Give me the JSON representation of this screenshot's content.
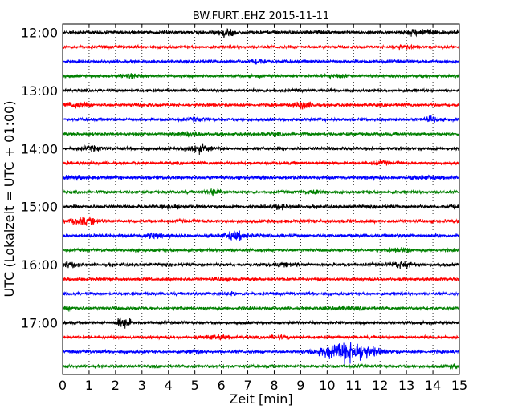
{
  "chart_data": {
    "type": "line",
    "title": "BW.FURT..EHZ 2015-11-11",
    "xlabel": "Zeit  [min]",
    "ylabel": "UTC (Lokalzeit = UTC + 01:00)",
    "xlim": [
      0,
      15
    ],
    "x_ticks": [
      "0",
      "1",
      "2",
      "3",
      "4",
      "5",
      "6",
      "7",
      "8",
      "9",
      "10",
      "11",
      "12",
      "13",
      "14",
      "15"
    ],
    "y_ticks": [
      "12:00",
      "13:00",
      "14:00",
      "15:00",
      "16:00",
      "17:00"
    ],
    "grid": true,
    "trace_interval_min": 15,
    "trace_colors": [
      "#000000",
      "#ff0000",
      "#0000ff",
      "#008000"
    ],
    "traces": [
      {
        "start": "12:00",
        "color": "#000000",
        "amplitude": 1.0,
        "bursts": [
          {
            "t": 6.2,
            "a": 1.9,
            "w": 0.35
          },
          {
            "t": 13.5,
            "a": 1.7,
            "w": 0.5
          }
        ]
      },
      {
        "start": "12:15",
        "color": "#ff0000",
        "amplitude": 0.9,
        "bursts": [
          {
            "t": 12.8,
            "a": 1.4,
            "w": 0.4
          }
        ]
      },
      {
        "start": "12:30",
        "color": "#0000ff",
        "amplitude": 0.9,
        "bursts": [
          {
            "t": 7.4,
            "a": 1.6,
            "w": 0.3
          }
        ]
      },
      {
        "start": "12:45",
        "color": "#008000",
        "amplitude": 0.9,
        "bursts": [
          {
            "t": 2.6,
            "a": 1.4,
            "w": 0.4
          },
          {
            "t": 10.3,
            "a": 1.3,
            "w": 0.5
          }
        ]
      },
      {
        "start": "13:00",
        "color": "#000000",
        "amplitude": 0.9,
        "bursts": []
      },
      {
        "start": "13:15",
        "color": "#ff0000",
        "amplitude": 1.0,
        "bursts": [
          {
            "t": 0.5,
            "a": 1.6,
            "w": 0.4
          },
          {
            "t": 9.1,
            "a": 1.7,
            "w": 0.35
          }
        ]
      },
      {
        "start": "13:30",
        "color": "#0000ff",
        "amplitude": 0.9,
        "bursts": [
          {
            "t": 5.1,
            "a": 1.3,
            "w": 0.4
          },
          {
            "t": 14.0,
            "a": 1.6,
            "w": 0.3
          }
        ]
      },
      {
        "start": "13:45",
        "color": "#008000",
        "amplitude": 0.9,
        "bursts": [
          {
            "t": 4.8,
            "a": 1.4,
            "w": 0.5
          },
          {
            "t": 7.9,
            "a": 1.3,
            "w": 0.4
          }
        ]
      },
      {
        "start": "14:00",
        "color": "#000000",
        "amplitude": 1.0,
        "bursts": [
          {
            "t": 1.1,
            "a": 1.4,
            "w": 0.4
          },
          {
            "t": 5.1,
            "a": 1.8,
            "w": 0.45
          }
        ]
      },
      {
        "start": "14:15",
        "color": "#ff0000",
        "amplitude": 0.9,
        "bursts": [
          {
            "t": 12.0,
            "a": 1.3,
            "w": 0.4
          }
        ]
      },
      {
        "start": "14:30",
        "color": "#0000ff",
        "amplitude": 1.0,
        "bursts": [
          {
            "t": 0.5,
            "a": 1.3,
            "w": 0.4
          },
          {
            "t": 13.7,
            "a": 1.3,
            "w": 0.5
          }
        ]
      },
      {
        "start": "14:45",
        "color": "#008000",
        "amplitude": 0.9,
        "bursts": [
          {
            "t": 5.7,
            "a": 1.8,
            "w": 0.3
          },
          {
            "t": 9.6,
            "a": 1.3,
            "w": 0.5
          }
        ]
      },
      {
        "start": "15:00",
        "color": "#000000",
        "amplitude": 1.0,
        "bursts": [
          {
            "t": 4.2,
            "a": 1.4,
            "w": 0.4
          },
          {
            "t": 8.2,
            "a": 1.4,
            "w": 0.4
          },
          {
            "t": 14.8,
            "a": 1.4,
            "w": 0.3
          }
        ]
      },
      {
        "start": "15:15",
        "color": "#ff0000",
        "amplitude": 1.0,
        "bursts": [
          {
            "t": 0.8,
            "a": 1.7,
            "w": 0.6
          }
        ]
      },
      {
        "start": "15:30",
        "color": "#0000ff",
        "amplitude": 1.0,
        "bursts": [
          {
            "t": 3.4,
            "a": 1.6,
            "w": 0.3
          },
          {
            "t": 6.6,
            "a": 1.9,
            "w": 0.5
          }
        ]
      },
      {
        "start": "15:45",
        "color": "#008000",
        "amplitude": 0.9,
        "bursts": [
          {
            "t": 12.8,
            "a": 1.5,
            "w": 0.4
          }
        ]
      },
      {
        "start": "16:00",
        "color": "#000000",
        "amplitude": 1.0,
        "bursts": [
          {
            "t": 0.2,
            "a": 1.6,
            "w": 0.3
          },
          {
            "t": 8.6,
            "a": 1.3,
            "w": 0.4
          },
          {
            "t": 12.8,
            "a": 1.8,
            "w": 0.35
          }
        ]
      },
      {
        "start": "16:15",
        "color": "#ff0000",
        "amplitude": 0.9,
        "bursts": [
          {
            "t": 6.1,
            "a": 1.2,
            "w": 0.4
          }
        ]
      },
      {
        "start": "16:30",
        "color": "#0000ff",
        "amplitude": 0.9,
        "bursts": [
          {
            "t": 6.1,
            "a": 1.3,
            "w": 0.4
          }
        ]
      },
      {
        "start": "16:45",
        "color": "#008000",
        "amplitude": 0.9,
        "bursts": [
          {
            "t": 0.3,
            "a": 1.3,
            "w": 0.3
          },
          {
            "t": 10.6,
            "a": 1.3,
            "w": 0.6
          }
        ]
      },
      {
        "start": "17:00",
        "color": "#000000",
        "amplitude": 0.9,
        "bursts": [
          {
            "t": 2.3,
            "a": 2.4,
            "w": 0.25
          }
        ]
      },
      {
        "start": "17:15",
        "color": "#ff0000",
        "amplitude": 0.9,
        "bursts": [
          {
            "t": 5.8,
            "a": 1.4,
            "w": 0.5
          },
          {
            "t": 8.1,
            "a": 1.4,
            "w": 0.4
          }
        ]
      },
      {
        "start": "17:30",
        "color": "#0000ff",
        "amplitude": 0.9,
        "bursts": [
          {
            "t": 5.0,
            "a": 1.3,
            "w": 0.3
          },
          {
            "t": 10.8,
            "a": 3.5,
            "w": 1.0
          }
        ]
      },
      {
        "start": "17:45",
        "color": "#008000",
        "amplitude": 0.9,
        "bursts": [
          {
            "t": 14.8,
            "a": 1.3,
            "w": 0.3
          }
        ]
      }
    ]
  }
}
